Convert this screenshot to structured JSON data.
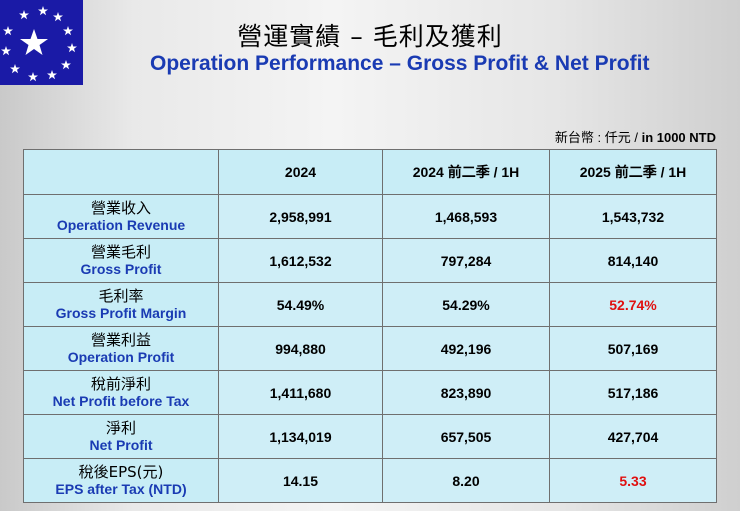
{
  "title": {
    "zh": "營運實績 – 毛利及獲利",
    "en": "Operation Performance – Gross Profit & Net Profit"
  },
  "unit": {
    "zh": "新台幣 : 仟元  /  ",
    "en": "in 1000 NTD"
  },
  "table": {
    "columns": [
      "2024",
      "2024 前二季  /  1H",
      "2025 前二季  /  1H"
    ],
    "rows": [
      {
        "zh": "營業收入",
        "en": "Operation Revenue",
        "values": [
          "2,958,991",
          "1,468,593",
          "1,543,732"
        ]
      },
      {
        "zh": "營業毛利",
        "en": "Gross Profit",
        "values": [
          "1,612,532",
          "797,284",
          "814,140"
        ]
      },
      {
        "zh": "毛利率",
        "en": "Gross Profit Margin",
        "values": [
          "54.49%",
          "54.29%",
          "52.74%"
        ]
      },
      {
        "zh": "營業利益",
        "en": "Operation Profit",
        "values": [
          "994,880",
          "492,196",
          "507,169"
        ]
      },
      {
        "zh": "稅前淨利",
        "en": "Net Profit before Tax",
        "values": [
          "1,411,680",
          "823,890",
          "517,186"
        ]
      },
      {
        "zh": "淨利",
        "en": "Net Profit",
        "values": [
          "1,134,019",
          "657,505",
          "427,704"
        ]
      },
      {
        "zh": "稅後EPS(元)",
        "en": "EPS after Tax (NTD)",
        "values": [
          "14.15",
          "8.20",
          "5.33"
        ]
      }
    ]
  },
  "colors": {
    "logo_bg": "#1a1aa6",
    "title_en": "#1a3bb3",
    "highlight": "#e01010",
    "cell_bg": "#c8edf6"
  },
  "logo": {
    "icon": "star-circle-logo"
  }
}
